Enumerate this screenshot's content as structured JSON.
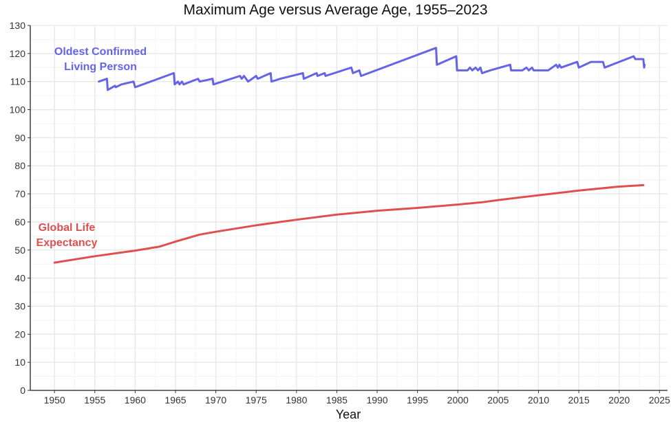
{
  "chart_data": {
    "type": "line",
    "title": "Maximum Age versus Average Age, 1955–2023",
    "xlabel": "Year",
    "ylabel": "",
    "xlim": [
      1947,
      2026
    ],
    "ylim": [
      0,
      130
    ],
    "x_ticks": [
      1950,
      1955,
      1960,
      1965,
      1970,
      1975,
      1980,
      1985,
      1990,
      1995,
      2000,
      2005,
      2010,
      2015,
      2020,
      2025
    ],
    "y_ticks": [
      0,
      10,
      20,
      30,
      40,
      50,
      60,
      70,
      80,
      90,
      100,
      110,
      120,
      130
    ],
    "grid": true,
    "legend": "none",
    "series": [
      {
        "id": "oldest",
        "label_lines": [
          "Oldest Confirmed",
          "Living Person"
        ],
        "color": "#6464e6",
        "points": [
          [
            1955.5,
            110
          ],
          [
            1956.5,
            111
          ],
          [
            1956.6,
            107
          ],
          [
            1957.5,
            108.5
          ],
          [
            1957.6,
            108
          ],
          [
            1958.3,
            109
          ],
          [
            1959.8,
            110
          ],
          [
            1960.0,
            108
          ],
          [
            1964.8,
            113
          ],
          [
            1964.9,
            109
          ],
          [
            1965.3,
            110
          ],
          [
            1965.5,
            109
          ],
          [
            1965.8,
            110
          ],
          [
            1966.0,
            109
          ],
          [
            1967.8,
            111
          ],
          [
            1968.0,
            110
          ],
          [
            1969.6,
            111
          ],
          [
            1969.7,
            109
          ],
          [
            1973.0,
            112
          ],
          [
            1973.2,
            111
          ],
          [
            1973.5,
            112
          ],
          [
            1974.0,
            110
          ],
          [
            1975.0,
            112
          ],
          [
            1975.2,
            111
          ],
          [
            1976.8,
            113
          ],
          [
            1976.9,
            110
          ],
          [
            1978.0,
            111
          ],
          [
            1980.8,
            113
          ],
          [
            1980.9,
            111
          ],
          [
            1982.5,
            113
          ],
          [
            1982.6,
            112
          ],
          [
            1983.5,
            113
          ],
          [
            1983.6,
            112
          ],
          [
            1986.8,
            115
          ],
          [
            1987.0,
            113
          ],
          [
            1987.8,
            114
          ],
          [
            1988.0,
            112
          ],
          [
            1997.3,
            122
          ],
          [
            1997.4,
            116
          ],
          [
            1999.8,
            119
          ],
          [
            1999.9,
            114
          ],
          [
            2001.2,
            114
          ],
          [
            2001.5,
            115
          ],
          [
            2001.8,
            114
          ],
          [
            2002.2,
            115
          ],
          [
            2002.5,
            114
          ],
          [
            2002.8,
            115
          ],
          [
            2003.0,
            113
          ],
          [
            2004.0,
            114
          ],
          [
            2006.5,
            116
          ],
          [
            2006.6,
            114
          ],
          [
            2008.0,
            114
          ],
          [
            2008.5,
            115
          ],
          [
            2008.8,
            114
          ],
          [
            2009.2,
            115
          ],
          [
            2009.4,
            114
          ],
          [
            2011.2,
            114
          ],
          [
            2012.2,
            116
          ],
          [
            2012.4,
            115
          ],
          [
            2012.6,
            116
          ],
          [
            2012.8,
            115
          ],
          [
            2014.8,
            117
          ],
          [
            2015.0,
            115
          ],
          [
            2016.5,
            117
          ],
          [
            2018.0,
            117
          ],
          [
            2018.2,
            115
          ],
          [
            2021.8,
            119
          ],
          [
            2022.0,
            118
          ],
          [
            2023.0,
            118
          ],
          [
            2023.1,
            115
          ],
          [
            2023.15,
            116
          ]
        ]
      },
      {
        "id": "life",
        "label_lines": [
          "Global Life",
          "Expectancy"
        ],
        "color": "#e04f4f",
        "points": [
          [
            1950,
            45.5
          ],
          [
            1955,
            47.8
          ],
          [
            1958,
            49.0
          ],
          [
            1960,
            49.8
          ],
          [
            1963,
            51.2
          ],
          [
            1965,
            53.0
          ],
          [
            1968,
            55.5
          ],
          [
            1970,
            56.5
          ],
          [
            1975,
            58.8
          ],
          [
            1978,
            60.0
          ],
          [
            1980,
            60.8
          ],
          [
            1985,
            62.6
          ],
          [
            1990,
            64.0
          ],
          [
            1995,
            65.0
          ],
          [
            2000,
            66.2
          ],
          [
            2003,
            67.0
          ],
          [
            2005,
            67.8
          ],
          [
            2010,
            69.5
          ],
          [
            2015,
            71.2
          ],
          [
            2020,
            72.6
          ],
          [
            2023,
            73.1
          ]
        ]
      }
    ]
  }
}
